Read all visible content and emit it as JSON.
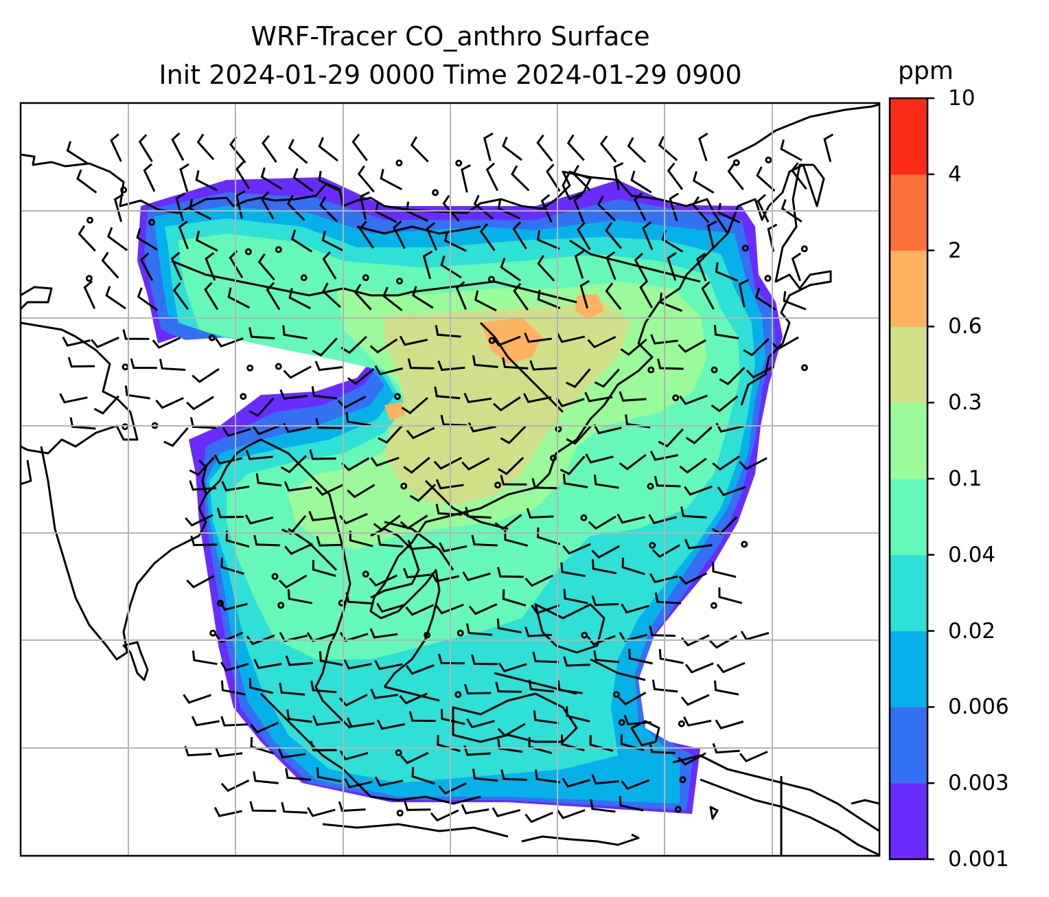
{
  "chart_data": {
    "type": "heatmap",
    "title": "WRF-Tracer CO_anthro Surface",
    "subtitle": "Init 2024-01-29 0000 Time 2024-01-29 0900",
    "colorbar": {
      "unit": "ppm",
      "levels": [
        "0.001",
        "0.003",
        "0.006",
        "0.02",
        "0.04",
        "0.1",
        "0.3",
        "0.6",
        "2",
        "4",
        "10"
      ],
      "colors": [
        "#6a2bff",
        "#3470f2",
        "#06b1ea",
        "#2ee0d6",
        "#66f8b8",
        "#9bfa9a",
        "#cfe089",
        "#fdb260",
        "#fd713b",
        "#fb2a17"
      ]
    },
    "gridlines": true,
    "overlays": [
      "coastlines",
      "country borders",
      "wind barbs"
    ]
  }
}
